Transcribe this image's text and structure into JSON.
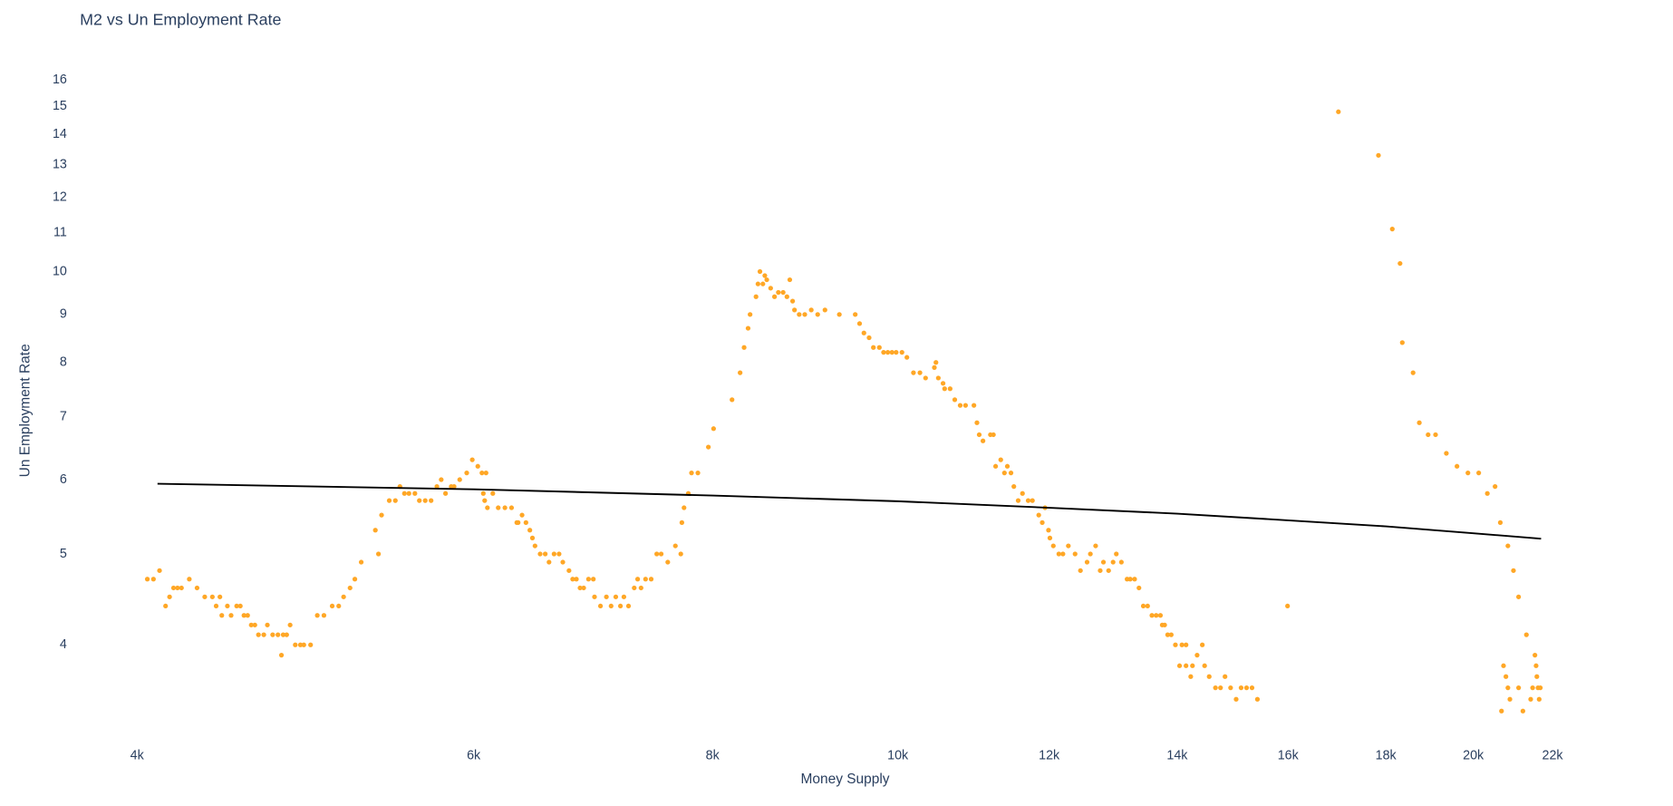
{
  "chart_data": {
    "type": "scatter",
    "title": "M2 vs Un Employment Rate",
    "x_label": "Money Supply",
    "y_label": "Un Employment Rate",
    "xlog": true,
    "ylog": true,
    "grid": false,
    "xlim": [
      3734,
      25108
    ],
    "ylim": [
      3.21,
      16.6
    ],
    "xticks": [
      {
        "value": 4000,
        "label": "4k"
      },
      {
        "value": 6000,
        "label": "6k"
      },
      {
        "value": 8000,
        "label": "8k"
      },
      {
        "value": 10000,
        "label": "10k"
      },
      {
        "value": 12000,
        "label": "12k"
      },
      {
        "value": 14000,
        "label": "14k"
      },
      {
        "value": 16000,
        "label": "16k"
      },
      {
        "value": 18000,
        "label": "18k"
      },
      {
        "value": 20000,
        "label": "20k"
      },
      {
        "value": 22000,
        "label": "22k"
      }
    ],
    "yticks": [
      4,
      5,
      6,
      7,
      8,
      9,
      10,
      11,
      12,
      13,
      14,
      15,
      16
    ],
    "series": [
      {
        "mode": "markers",
        "color": "#ffa726",
        "x": [
          4050,
          4080,
          4110,
          4140,
          4160,
          4180,
          4200,
          4220,
          4260,
          4300,
          4340,
          4380,
          4400,
          4420,
          4430,
          4460,
          4480,
          4510,
          4530,
          4550,
          4570,
          4590,
          4610,
          4630,
          4660,
          4680,
          4710,
          4740,
          4760,
          4770,
          4790,
          4810,
          4840,
          4870,
          4890,
          4930,
          4970,
          5010,
          5060,
          5100,
          5130,
          5170,
          5200,
          5240,
          5350,
          5330,
          5370,
          5420,
          5460,
          5490,
          5520,
          5550,
          5590,
          5620,
          5660,
          5700,
          5740,
          5770,
          5800,
          5840,
          5860,
          5900,
          5950,
          5990,
          6030,
          6060,
          6090,
          6070,
          6080,
          6100,
          6140,
          6180,
          6230,
          6280,
          6320,
          6330,
          6360,
          6390,
          6420,
          6440,
          6460,
          6500,
          6540,
          6570,
          6610,
          6650,
          6680,
          6730,
          6760,
          6790,
          6820,
          6850,
          6890,
          6930,
          6940,
          6990,
          7040,
          7080,
          7120,
          7160,
          7190,
          7230,
          7280,
          7310,
          7340,
          7380,
          7430,
          7480,
          7520,
          7580,
          7650,
          7700,
          7710,
          7730,
          7770,
          7800,
          7860,
          7960,
          8010,
          8190,
          8270,
          8310,
          8350,
          8370,
          8430,
          8450,
          8470,
          8500,
          8520,
          8540,
          8580,
          8620,
          8660,
          8710,
          8750,
          8780,
          8810,
          8830,
          8880,
          8940,
          9010,
          9080,
          9160,
          9320,
          9500,
          9550,
          9600,
          9660,
          9710,
          9780,
          9830,
          9880,
          9930,
          9980,
          10050,
          10110,
          10190,
          10270,
          10340,
          10450,
          10470,
          10500,
          10560,
          10580,
          10650,
          10710,
          10780,
          10850,
          10960,
          11000,
          11030,
          11080,
          11180,
          11220,
          11250,
          11320,
          11370,
          11410,
          11460,
          11500,
          11560,
          11620,
          11700,
          11760,
          11850,
          11900,
          11940,
          11990,
          12010,
          12060,
          12140,
          12200,
          12280,
          12380,
          12460,
          12560,
          12610,
          12690,
          12760,
          12810,
          12890,
          12960,
          13010,
          13090,
          13180,
          13230,
          13300,
          13370,
          13440,
          13510,
          13580,
          13650,
          13720,
          13750,
          13790,
          13840,
          13900,
          13970,
          14080,
          14150,
          14040,
          14150,
          14230,
          14260,
          14340,
          14430,
          14470,
          14550,
          14660,
          14750,
          14830,
          14930,
          15030,
          15120,
          15220,
          15320,
          15420,
          15990,
          17000,
          17840,
          18140,
          18310,
          18360,
          18600,
          18740,
          18940,
          19110,
          19360,
          19610,
          19870,
          20130,
          20340,
          20530,
          20660,
          20850,
          20990,
          21120,
          20690,
          20740,
          20800,
          20850,
          20900,
          21120,
          21230,
          21320,
          21430,
          21480,
          21540,
          21570,
          21590,
          21620,
          21650,
          21680
        ],
        "values": [
          4.7,
          4.7,
          4.8,
          4.4,
          4.5,
          4.6,
          4.6,
          4.6,
          4.7,
          4.6,
          4.5,
          4.5,
          4.4,
          4.5,
          4.3,
          4.4,
          4.3,
          4.4,
          4.4,
          4.3,
          4.3,
          4.2,
          4.2,
          4.1,
          4.1,
          4.2,
          4.1,
          4.1,
          3.9,
          4.1,
          4.1,
          4.2,
          4.0,
          4.0,
          4.0,
          4.0,
          4.3,
          4.3,
          4.4,
          4.4,
          4.5,
          4.6,
          4.7,
          4.9,
          5.0,
          5.3,
          5.5,
          5.7,
          5.7,
          5.9,
          5.8,
          5.8,
          5.8,
          5.7,
          5.7,
          5.7,
          5.9,
          6.0,
          5.8,
          5.9,
          5.9,
          6.0,
          6.1,
          6.3,
          6.2,
          6.1,
          6.1,
          5.8,
          5.7,
          5.6,
          5.8,
          5.6,
          5.6,
          5.6,
          5.4,
          5.4,
          5.5,
          5.4,
          5.3,
          5.2,
          5.1,
          5.0,
          5.0,
          4.9,
          5.0,
          5.0,
          4.9,
          4.8,
          4.7,
          4.7,
          4.6,
          4.6,
          4.7,
          4.7,
          4.5,
          4.4,
          4.5,
          4.4,
          4.5,
          4.4,
          4.5,
          4.4,
          4.6,
          4.7,
          4.6,
          4.7,
          4.7,
          5.0,
          5.0,
          4.9,
          5.1,
          5.0,
          5.4,
          5.6,
          5.8,
          6.1,
          6.1,
          6.5,
          6.8,
          7.3,
          7.8,
          8.3,
          8.7,
          9.0,
          9.4,
          9.7,
          10.0,
          9.7,
          9.9,
          9.8,
          9.6,
          9.4,
          9.5,
          9.5,
          9.4,
          9.8,
          9.3,
          9.1,
          9.0,
          9.0,
          9.1,
          9.0,
          9.1,
          9.0,
          9.0,
          8.8,
          8.6,
          8.5,
          8.3,
          8.3,
          8.2,
          8.2,
          8.2,
          8.2,
          8.2,
          8.1,
          7.8,
          7.8,
          7.7,
          7.9,
          8.0,
          7.7,
          7.6,
          7.5,
          7.5,
          7.3,
          7.2,
          7.2,
          7.2,
          6.9,
          6.7,
          6.6,
          6.7,
          6.7,
          6.2,
          6.3,
          6.1,
          6.2,
          6.1,
          5.9,
          5.7,
          5.8,
          5.7,
          5.7,
          5.5,
          5.4,
          5.6,
          5.3,
          5.2,
          5.1,
          5.0,
          5.0,
          5.1,
          5.0,
          4.8,
          4.9,
          5.0,
          5.1,
          4.8,
          4.9,
          4.8,
          4.9,
          5.0,
          4.9,
          4.7,
          4.7,
          4.7,
          4.6,
          4.4,
          4.4,
          4.3,
          4.3,
          4.3,
          4.2,
          4.2,
          4.1,
          4.1,
          4.0,
          4.0,
          4.0,
          3.8,
          3.8,
          3.7,
          3.8,
          3.9,
          4.0,
          3.8,
          3.7,
          3.6,
          3.6,
          3.7,
          3.6,
          3.5,
          3.6,
          3.6,
          3.6,
          3.5,
          4.4,
          14.8,
          13.3,
          11.1,
          10.2,
          8.4,
          7.8,
          6.9,
          6.7,
          6.7,
          6.4,
          6.2,
          6.1,
          6.1,
          5.8,
          5.9,
          5.4,
          5.1,
          4.8,
          4.5,
          3.4,
          3.8,
          3.7,
          3.6,
          3.5,
          3.6,
          3.4,
          4.1,
          3.5,
          3.6,
          3.9,
          3.8,
          3.7,
          3.6,
          3.5,
          3.6
        ]
      },
      {
        "mode": "lines",
        "color": "#000000",
        "x": [
          4100,
          6000,
          8000,
          10000,
          12000,
          14000,
          16000,
          18000,
          20000,
          21700
        ],
        "values": [
          5.94,
          5.86,
          5.77,
          5.69,
          5.6,
          5.52,
          5.43,
          5.35,
          5.26,
          5.19
        ]
      }
    ]
  }
}
